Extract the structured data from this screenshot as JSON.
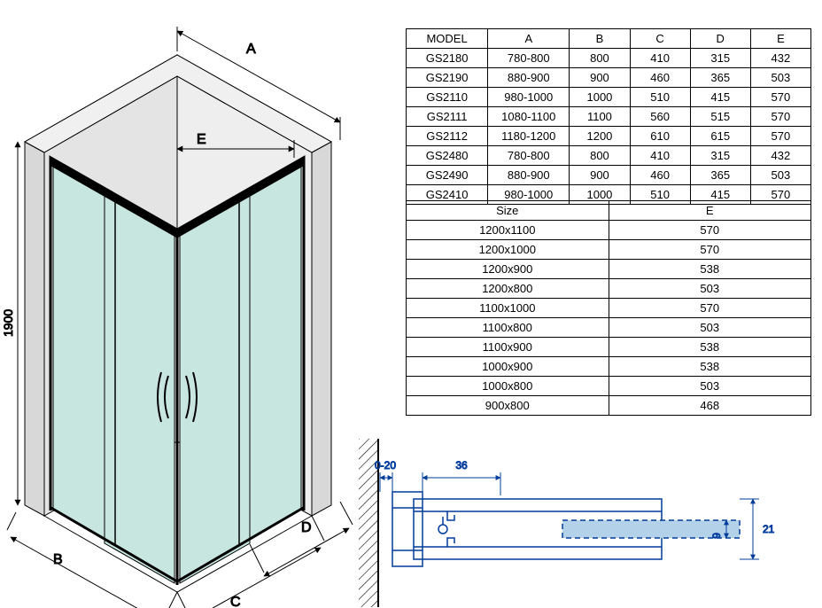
{
  "colors": {
    "ink": "#000000",
    "glass": "#c7e6e0",
    "glass_stroke": "#64b2a6",
    "wall": "#d8d8d8",
    "blueprint": "#003c9b",
    "blueprint_fill": "#b3d1e8",
    "hatch": "#000000"
  },
  "drawing": {
    "height_label": "1900",
    "dims": {
      "A": "A",
      "B": "B",
      "C": "C",
      "D": "D",
      "E": "E"
    },
    "detail": {
      "gap": "0-20",
      "w": "36",
      "h": "21",
      "thk": "9"
    }
  },
  "table1": {
    "headers": [
      "MODEL",
      "A",
      "B",
      "C",
      "D",
      "E"
    ],
    "rows": [
      [
        "GS2180",
        "780-800",
        "800",
        "410",
        "315",
        "432"
      ],
      [
        "GS2190",
        "880-900",
        "900",
        "460",
        "365",
        "503"
      ],
      [
        "GS2110",
        "980-1000",
        "1000",
        "510",
        "415",
        "570"
      ],
      [
        "GS2111",
        "1080-1100",
        "1100",
        "560",
        "515",
        "570"
      ],
      [
        "GS2112",
        "1180-1200",
        "1200",
        "610",
        "615",
        "570"
      ],
      [
        "GS2480",
        "780-800",
        "800",
        "410",
        "315",
        "432"
      ],
      [
        "GS2490",
        "880-900",
        "900",
        "460",
        "365",
        "503"
      ],
      [
        "GS2410",
        "980-1000",
        "1000",
        "510",
        "415",
        "570"
      ]
    ],
    "col_widths": [
      "92px",
      "92px",
      "68px",
      "68px",
      "68px",
      "68px"
    ]
  },
  "table2": {
    "headers": [
      "Size",
      "E"
    ],
    "rows": [
      [
        "1200x1100",
        "570"
      ],
      [
        "1200x1000",
        "570"
      ],
      [
        "1200x900",
        "538"
      ],
      [
        "1200x800",
        "503"
      ],
      [
        "1100x1000",
        "570"
      ],
      [
        "1100x800",
        "503"
      ],
      [
        "1100x900",
        "538"
      ],
      [
        "1000x900",
        "538"
      ],
      [
        "1000x800",
        "503"
      ],
      [
        "900x800",
        "468"
      ]
    ]
  }
}
